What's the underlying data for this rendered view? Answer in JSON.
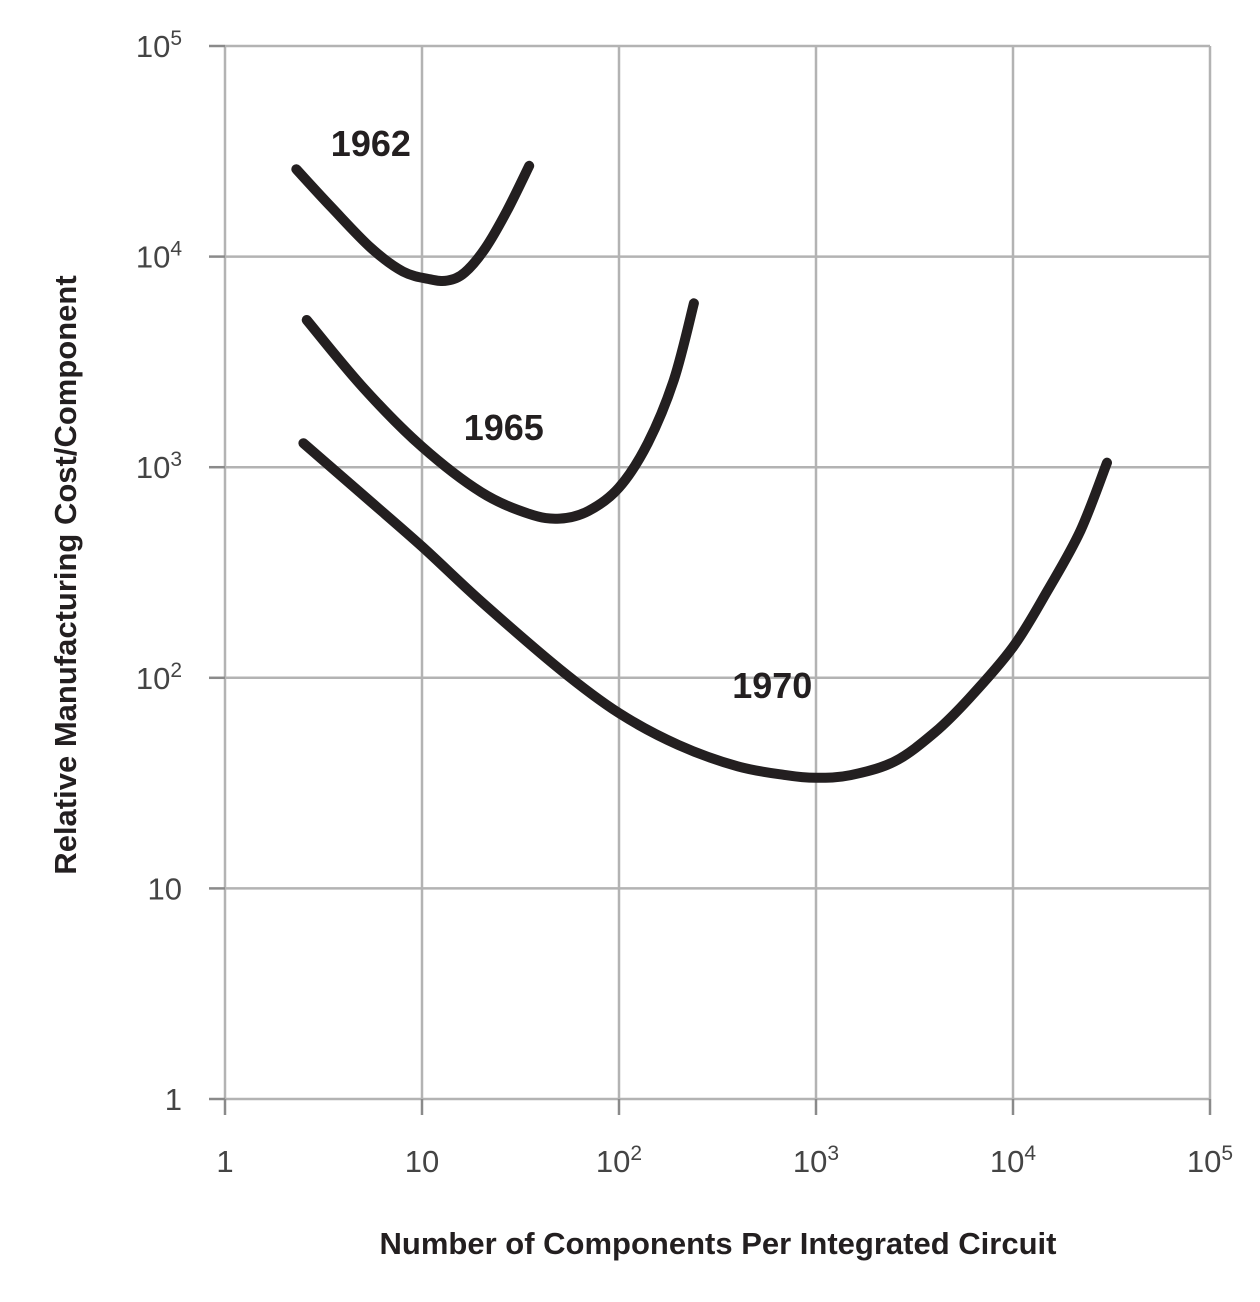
{
  "chart_data": {
    "type": "line",
    "title": "",
    "xlabel": "Number of Components Per Integrated Circuit",
    "ylabel": "Relative Manufacturing Cost/Component",
    "x_scale": "log",
    "y_scale": "log",
    "xlim": [
      1,
      100000
    ],
    "ylim": [
      1,
      100000
    ],
    "grid": true,
    "x_ticks": [
      {
        "value": 1,
        "base": "1",
        "exp": ""
      },
      {
        "value": 10,
        "base": "10",
        "exp": ""
      },
      {
        "value": 100,
        "base": "10",
        "exp": "2"
      },
      {
        "value": 1000,
        "base": "10",
        "exp": "3"
      },
      {
        "value": 10000,
        "base": "10",
        "exp": "4"
      },
      {
        "value": 100000,
        "base": "10",
        "exp": "5"
      }
    ],
    "y_ticks": [
      {
        "value": 1,
        "base": "1",
        "exp": ""
      },
      {
        "value": 10,
        "base": "10",
        "exp": ""
      },
      {
        "value": 100,
        "base": "10",
        "exp": "2"
      },
      {
        "value": 1000,
        "base": "10",
        "exp": "3"
      },
      {
        "value": 10000,
        "base": "10",
        "exp": "4"
      },
      {
        "value": 100000,
        "base": "10",
        "exp": "5"
      }
    ],
    "line_color": "#231f20",
    "grid_color": "#b3b3b3",
    "series": [
      {
        "name": "1962",
        "label_at": [
          5.5,
          30000
        ],
        "points": [
          [
            2.3,
            26000
          ],
          [
            3.5,
            17000
          ],
          [
            5.5,
            11000
          ],
          [
            8,
            8500
          ],
          [
            11,
            7800
          ],
          [
            13.5,
            7700
          ],
          [
            16.5,
            8400
          ],
          [
            21,
            11000
          ],
          [
            27,
            16500
          ],
          [
            35,
            27000
          ]
        ]
      },
      {
        "name": "1965",
        "label_at": [
          26,
          1350
        ],
        "points": [
          [
            2.6,
            5000
          ],
          [
            5,
            2400
          ],
          [
            10,
            1250
          ],
          [
            20,
            760
          ],
          [
            35,
            600
          ],
          [
            50,
            570
          ],
          [
            70,
            620
          ],
          [
            100,
            800
          ],
          [
            140,
            1300
          ],
          [
            190,
            2600
          ],
          [
            240,
            6000
          ]
        ]
      },
      {
        "name": "1970",
        "label_at": [
          600,
          80
        ],
        "points": [
          [
            2.5,
            1300
          ],
          [
            5,
            740
          ],
          [
            10,
            420
          ],
          [
            20,
            230
          ],
          [
            50,
            110
          ],
          [
            100,
            68
          ],
          [
            200,
            48
          ],
          [
            400,
            38
          ],
          [
            700,
            34.5
          ],
          [
            1000,
            33.5
          ],
          [
            1500,
            34.5
          ],
          [
            2500,
            40
          ],
          [
            4000,
            55
          ],
          [
            6000,
            80
          ],
          [
            10000,
            140
          ],
          [
            15000,
            260
          ],
          [
            22000,
            500
          ],
          [
            30000,
            1050
          ]
        ]
      }
    ]
  }
}
